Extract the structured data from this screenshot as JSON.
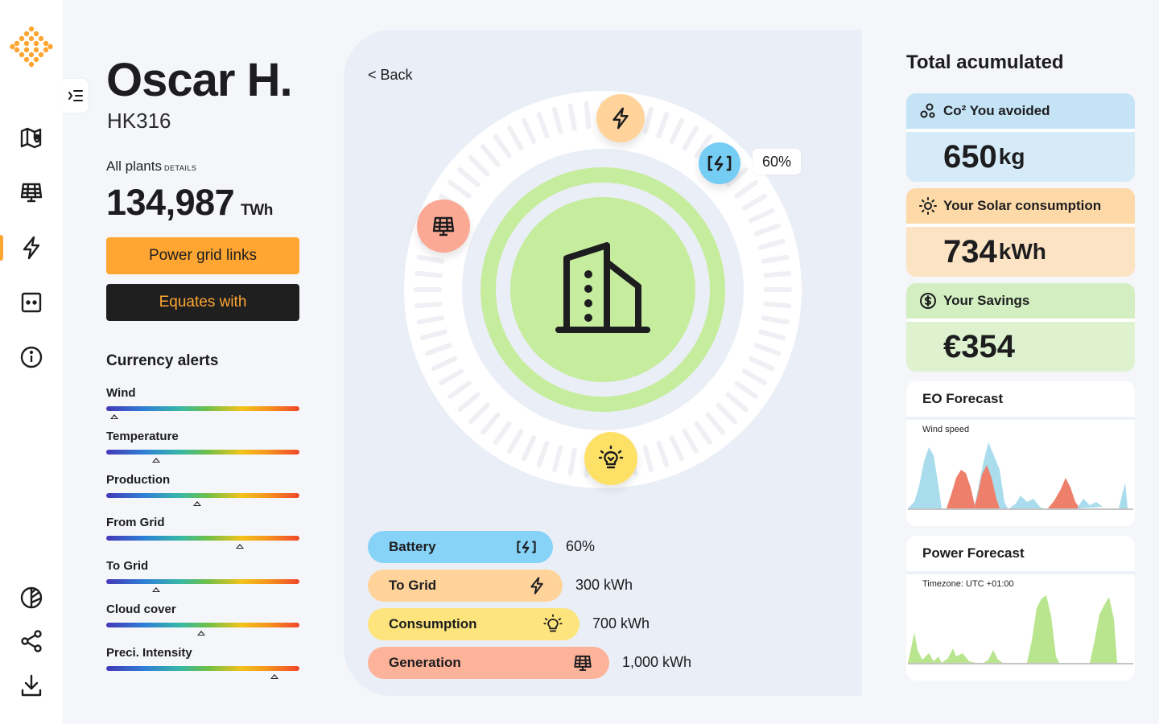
{
  "sidebar": {
    "items": [
      "map-icon",
      "grid-icon",
      "lightning-icon",
      "device-icon",
      "info-icon",
      "contrast-icon",
      "share-icon",
      "download-icon"
    ],
    "active": "lightning-icon"
  },
  "user": {
    "name": "Oscar H.",
    "code": "HK316"
  },
  "plants": {
    "label": "All plants",
    "details": "DETAILS",
    "value": "134,987",
    "unit": "TWh"
  },
  "buttons": {
    "power_grid": "Power grid links",
    "equates": "Equates with"
  },
  "alerts": {
    "title": "Currency alerts",
    "items": [
      {
        "label": "Wind",
        "level": 0.04
      },
      {
        "label": "Temperature",
        "level": 0.26
      },
      {
        "label": "Production",
        "level": 0.47
      },
      {
        "label": "From Grid",
        "level": 0.69
      },
      {
        "label": "To Grid",
        "level": 0.26
      },
      {
        "label": "Cloud cover",
        "level": 0.49
      },
      {
        "label": "Preci. Intensity",
        "level": 0.87
      }
    ]
  },
  "center": {
    "back": "< Back",
    "battery_pct": "60%",
    "legend": [
      {
        "label": "Battery",
        "value": "60%",
        "color": "#86d3f7",
        "icon": "battery-charging-icon"
      },
      {
        "label": "To Grid",
        "value": "300 kWh",
        "color": "#ffd39a",
        "icon": "lightning-icon"
      },
      {
        "label": "Consumption",
        "value": "700 kWh",
        "color": "#fde47c",
        "icon": "lightbulb-icon"
      },
      {
        "label": "Generation",
        "value": "1,000 kWh",
        "color": "#fdb29a",
        "icon": "solar-panel-icon"
      }
    ]
  },
  "totals": {
    "title": "Total acumulated",
    "cards": [
      {
        "label": "Co² You avoided",
        "value": "650",
        "unit": "kg",
        "head_color": "#c4e3f5",
        "body_color": "#d6ebf8",
        "icon": "co2-icon"
      },
      {
        "label": "Your Solar consumption",
        "value": "734",
        "unit": "kWh",
        "head_color": "#fdd9a8",
        "body_color": "#fbe3c3",
        "icon": "sun-icon"
      },
      {
        "label": "Your Savings",
        "value": "€354",
        "unit": "",
        "head_color": "#d3eec0",
        "body_color": "#dff2d0",
        "icon": "coin-icon"
      }
    ]
  },
  "forecasts": {
    "eo": {
      "title": "EO Forecast",
      "sub": "Wind speed"
    },
    "power": {
      "title": "Power Forecast",
      "sub": "Timezone: UTC +01:00"
    }
  }
}
